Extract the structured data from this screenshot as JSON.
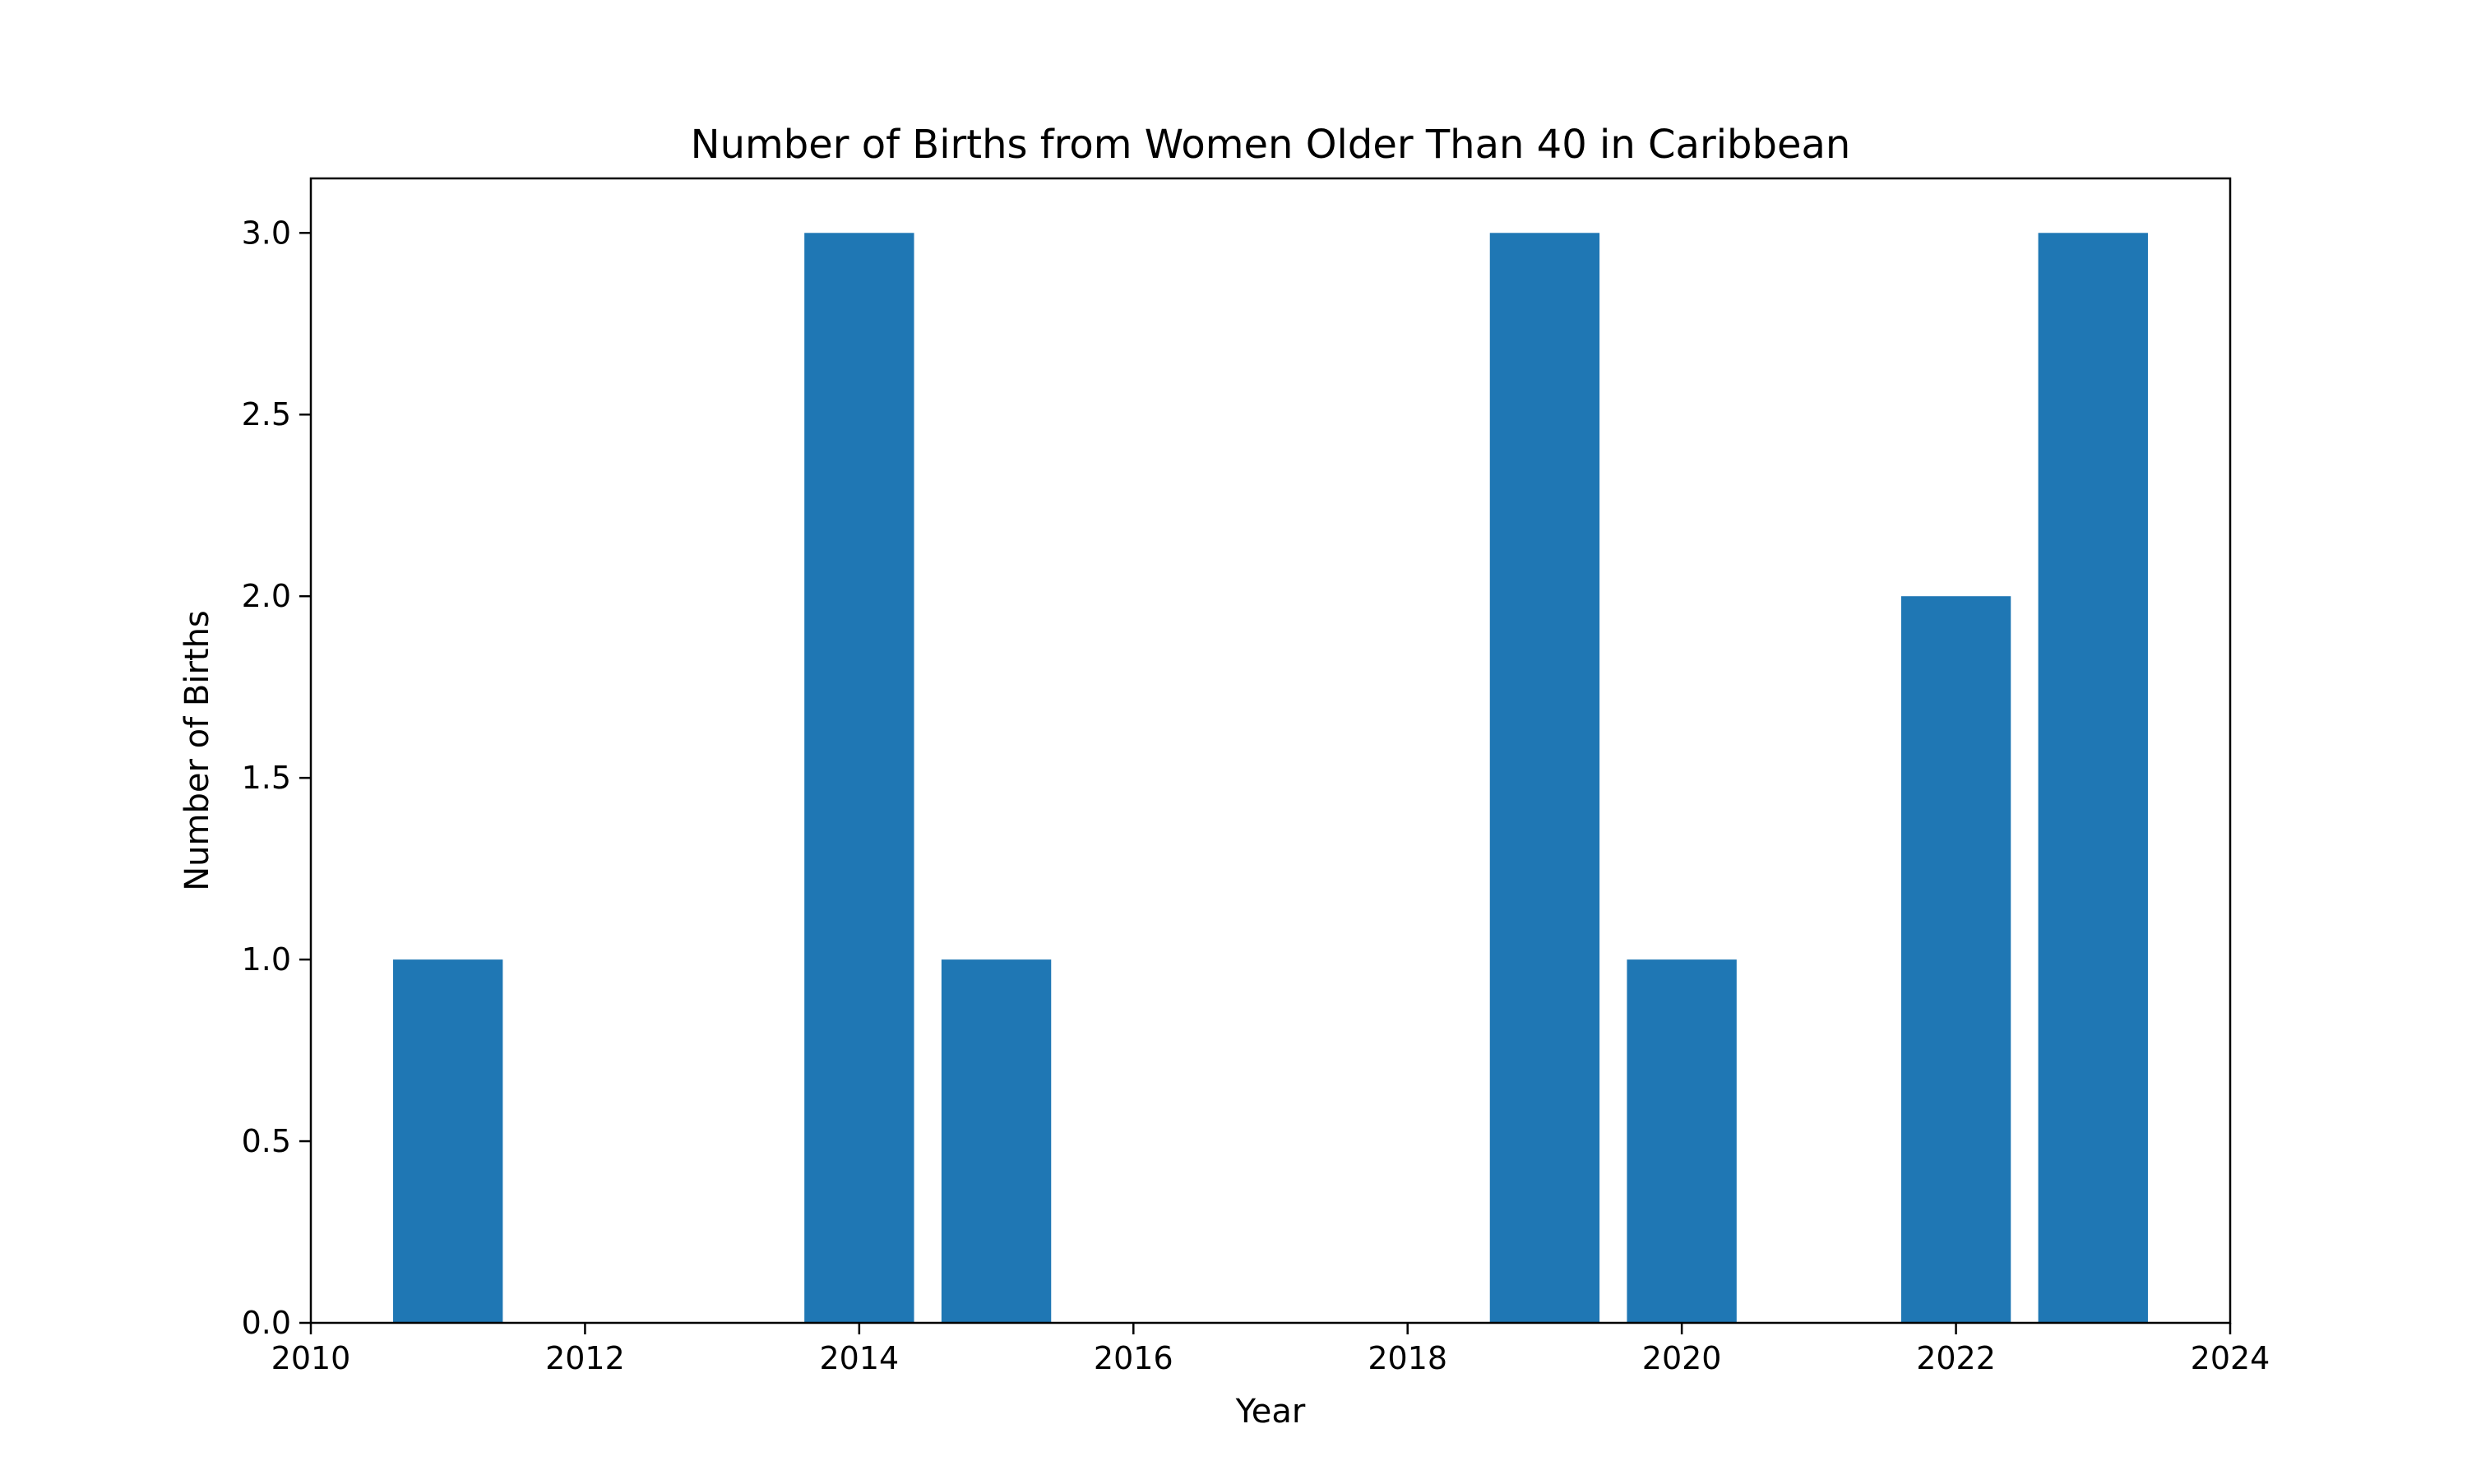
{
  "chart_data": {
    "type": "bar",
    "title": "Number of Births from Women Older Than 40 in Caribbean",
    "xlabel": "Year",
    "ylabel": "Number of Births",
    "x": [
      2011,
      2014,
      2015,
      2019,
      2020,
      2022,
      2023
    ],
    "values": [
      1,
      3,
      1,
      3,
      1,
      2,
      3
    ],
    "xlim": [
      2010,
      2024
    ],
    "ylim": [
      0,
      3.15
    ],
    "xticks": [
      "2010",
      "2012",
      "2014",
      "2016",
      "2018",
      "2020",
      "2022",
      "2024"
    ],
    "yticks": [
      "0.0",
      "0.5",
      "1.0",
      "1.5",
      "2.0",
      "2.5",
      "3.0"
    ],
    "bar_color": "#1f77b4",
    "grid": false,
    "legend": "none"
  }
}
